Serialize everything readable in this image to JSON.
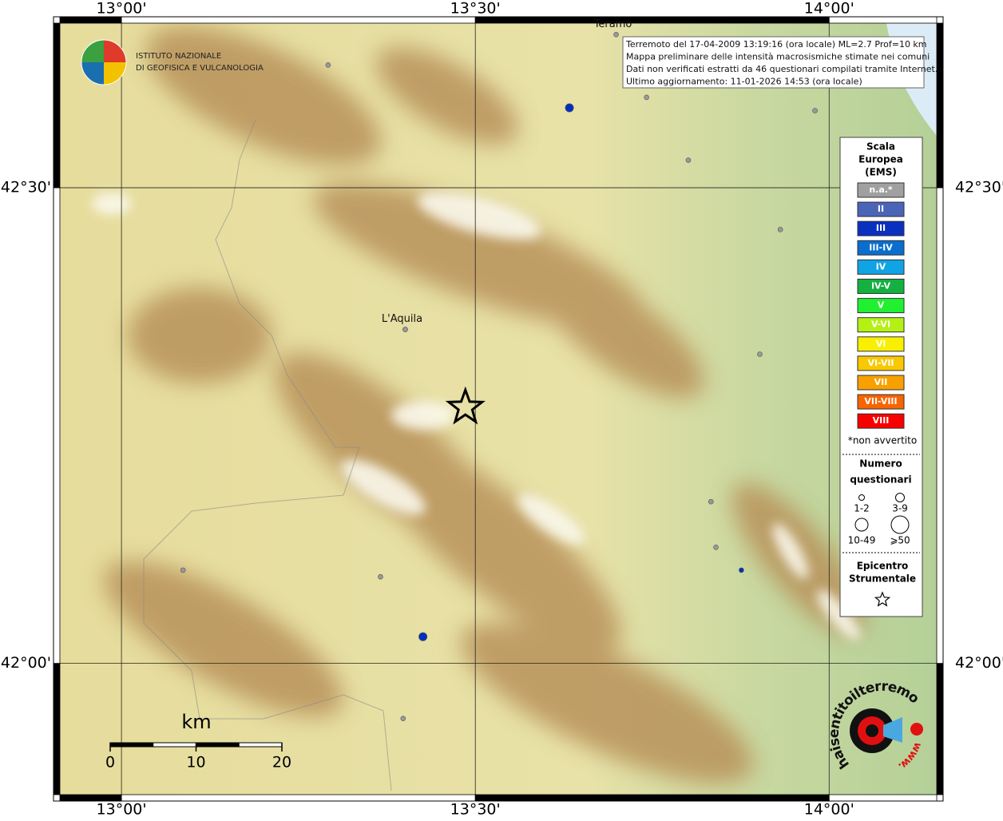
{
  "logo": {
    "line1": "ISTITUTO NAZIONALE",
    "line2": "DI GEOFISICA E VULCANOLOGIA"
  },
  "info": [
    "Terremoto del 17-04-2009 13:19:16 (ora locale) ML=2.7 Prof=10 km",
    "Mappa preliminare delle intensità macrosismiche stimate nei comuni",
    "Dati non verificati estratti da 46 questionari compilati tramite Internet.",
    "Ultimo aggiornamento: 11-01-2026 14:53 (ora locale)"
  ],
  "map": {
    "lonlim": [
      12.913,
      14.152
    ],
    "latlim": [
      41.862,
      42.673
    ],
    "lonticks": [
      {
        "value": 13,
        "label": "13°00'"
      },
      {
        "value": 13.5,
        "label": "13°30'"
      },
      {
        "value": 14,
        "label": "14°00'"
      }
    ],
    "latticks": [
      {
        "value": 42,
        "label": "42°00'"
      },
      {
        "value": 42.5,
        "label": "42°30'"
      }
    ],
    "cities": [
      {
        "name": "Teramo",
        "lon": 13.699,
        "lat": 42.661
      },
      {
        "name": "L'Aquila",
        "lon": 13.401,
        "lat": 42.351
      }
    ],
    "epicenter": {
      "lon": 13.486,
      "lat": 42.269
    },
    "points": [
      {
        "lon": 13.292,
        "lat": 42.629,
        "color": "#999999",
        "questionari": "1-2"
      },
      {
        "lon": 13.742,
        "lat": 42.595,
        "color": "#999999",
        "questionari": "1-2"
      },
      {
        "lon": 13.98,
        "lat": 42.581,
        "color": "#999999",
        "questionari": "1-2"
      },
      {
        "lon": 13.801,
        "lat": 42.529,
        "color": "#999999",
        "questionari": "1-2"
      },
      {
        "lon": 13.931,
        "lat": 42.456,
        "color": "#999999",
        "questionari": "1-2"
      },
      {
        "lon": 13.902,
        "lat": 42.325,
        "color": "#999999",
        "questionari": "1-2"
      },
      {
        "lon": 13.833,
        "lat": 42.17,
        "color": "#999999",
        "questionari": "1-2"
      },
      {
        "lon": 13.84,
        "lat": 42.122,
        "color": "#999999",
        "questionari": "1-2"
      },
      {
        "lon": 13.087,
        "lat": 42.098,
        "color": "#999999",
        "questionari": "1-2"
      },
      {
        "lon": 13.366,
        "lat": 42.091,
        "color": "#999999",
        "questionari": "1-2"
      },
      {
        "lon": 13.398,
        "lat": 41.942,
        "color": "#999999",
        "questionari": "1-2"
      },
      {
        "lon": 13.401,
        "lat": 42.351,
        "color": "#999999",
        "questionari": "1-2"
      },
      {
        "lon": 13.633,
        "lat": 42.584,
        "color": "#0030c0",
        "questionari": "3-9"
      },
      {
        "lon": 13.426,
        "lat": 42.028,
        "color": "#0030c0",
        "questionari": "3-9"
      },
      {
        "lon": 13.876,
        "lat": 42.098,
        "color": "#0030c0",
        "questionari": "1-2"
      }
    ]
  },
  "legend": {
    "title": [
      "Scala",
      "Europea",
      "(EMS)"
    ],
    "classes": [
      {
        "label": "n.a.*",
        "color": "#a0a0a0"
      },
      {
        "label": "II",
        "color": "#4a64b8"
      },
      {
        "label": "III",
        "color": "#0a30c0"
      },
      {
        "label": "III-IV",
        "color": "#0a6ed0"
      },
      {
        "label": "IV",
        "color": "#10a4e4"
      },
      {
        "label": "IV-V",
        "color": "#14b040"
      },
      {
        "label": "V",
        "color": "#20f030"
      },
      {
        "label": "V-VI",
        "color": "#b4f014"
      },
      {
        "label": "VI",
        "color": "#f8f000"
      },
      {
        "label": "VI-VII",
        "color": "#f8c800"
      },
      {
        "label": "VII",
        "color": "#f8a000"
      },
      {
        "label": "VII-VIII",
        "color": "#f86400"
      },
      {
        "label": "VIII",
        "color": "#f80000"
      }
    ],
    "note": "*non avvertito",
    "count_title": [
      "Numero",
      "questionari"
    ],
    "counts": [
      "1-2",
      "3-9",
      "10-49",
      "⩾50"
    ],
    "epicenter_title": [
      "Epicentro",
      "Strumentale"
    ]
  },
  "scalebar": {
    "unit": "km",
    "xlim": [
      0,
      20
    ],
    "ticks": [
      0,
      10,
      20
    ]
  },
  "badge": {
    "text": "haisentitoilterremoto.it",
    "www": "www."
  }
}
